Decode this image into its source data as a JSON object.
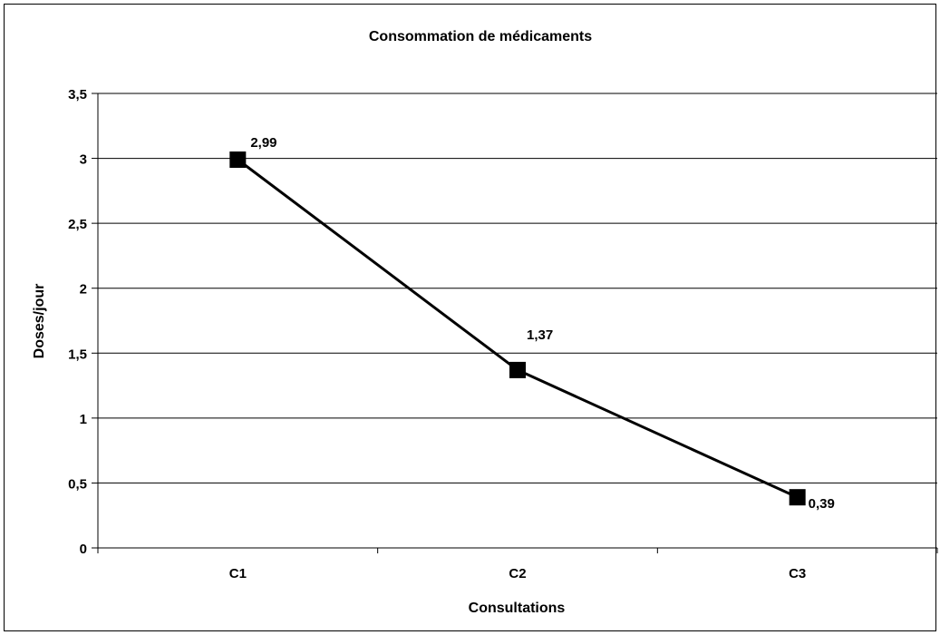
{
  "chart_data": {
    "type": "line",
    "title": "Consommation de médicaments",
    "xlabel": "Consultations",
    "ylabel": "Doses/jour",
    "categories": [
      "C1",
      "C2",
      "C3"
    ],
    "series": [
      {
        "values": [
          2.99,
          1.37,
          0.39
        ],
        "data_labels": [
          "2,99",
          "1,37",
          "0,39"
        ],
        "color": "#000000",
        "marker": "square"
      }
    ],
    "ylim": [
      0,
      3.5
    ],
    "yticks": [
      0,
      0.5,
      1,
      1.5,
      2,
      2.5,
      3,
      3.5
    ],
    "ytick_labels": [
      "0",
      "0,5",
      "1",
      "1,5",
      "2",
      "2,5",
      "3",
      "3,5"
    ],
    "grid": true,
    "legend": "none"
  }
}
